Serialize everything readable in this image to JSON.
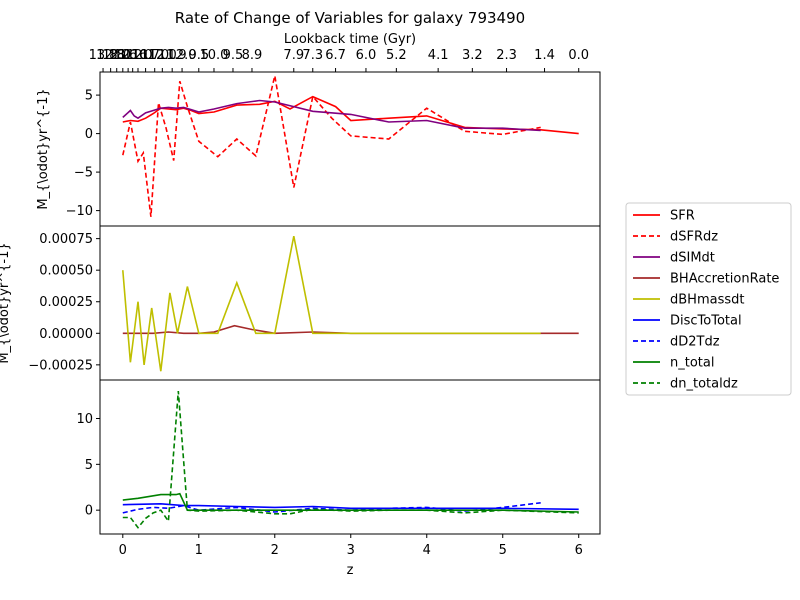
{
  "chart_data": {
    "type": "line",
    "title": "Rate of Change of Variables for galaxy 793490",
    "xlabel": "z",
    "top_xlabel": "Lookback time (Gyr)",
    "xlim": [
      -0.3,
      6.28
    ],
    "x_ticks": [
      0,
      1,
      2,
      3,
      4,
      5,
      6
    ],
    "top_ticks": [
      {
        "z": -0.26,
        "label": "13.8"
      },
      {
        "z": -0.16,
        "label": "12.8"
      },
      {
        "z": -0.08,
        "label": "12.0"
      },
      {
        "z": 0.0,
        "label": "13.6"
      },
      {
        "z": 0.07,
        "label": "12.2"
      },
      {
        "z": 0.13,
        "label": "11.6"
      },
      {
        "z": 0.2,
        "label": "11.0"
      },
      {
        "z": 0.3,
        "label": "10.7"
      },
      {
        "z": 0.42,
        "label": "11.0"
      },
      {
        "z": 0.52,
        "label": "12.0"
      },
      {
        "z": 0.65,
        "label": "11.9"
      },
      {
        "z": 0.78,
        "label": "12.0"
      },
      {
        "z": 1.0,
        "label": "9.5"
      },
      {
        "z": 1.2,
        "label": "10.0"
      },
      {
        "z": 1.45,
        "label": "9.5"
      },
      {
        "z": 1.7,
        "label": "8.9"
      },
      {
        "z": 2.25,
        "label": "7.9"
      },
      {
        "z": 2.5,
        "label": "7.3"
      },
      {
        "z": 2.8,
        "label": "6.7"
      },
      {
        "z": 3.2,
        "label": "6.0"
      },
      {
        "z": 3.6,
        "label": "5.2"
      },
      {
        "z": 4.15,
        "label": "4.1"
      },
      {
        "z": 4.6,
        "label": "3.2"
      },
      {
        "z": 5.05,
        "label": "2.3"
      },
      {
        "z": 5.55,
        "label": "1.4"
      },
      {
        "z": 6.0,
        "label": "0.0"
      }
    ],
    "legend_position": "right",
    "panels": [
      {
        "ylabel": "M_{\\odot}yr^{-1}",
        "ylim": [
          -12.0,
          8.0
        ],
        "y_ticks": [
          {
            "value": 5,
            "label": "5"
          },
          {
            "value": 0,
            "label": "0"
          },
          {
            "value": -5,
            "label": "−5"
          },
          {
            "value": -10,
            "label": "−10"
          }
        ],
        "series": [
          {
            "name": "SFR",
            "color": "#ff0000",
            "dash": "solid",
            "x": [
              0,
              0.1,
              0.2,
              0.3,
              0.4,
              0.5,
              0.6,
              0.7,
              0.8,
              0.9,
              1.0,
              1.2,
              1.5,
              1.8,
              2.0,
              2.2,
              2.5,
              2.8,
              3.0,
              3.5,
              4.0,
              4.5,
              5.0,
              5.5,
              6.0
            ],
            "y": [
              1.5,
              1.7,
              1.6,
              2.0,
              2.6,
              3.3,
              3.2,
              3.1,
              3.3,
              3.0,
              2.6,
              2.8,
              3.7,
              3.8,
              4.2,
              3.2,
              4.8,
              3.5,
              1.7,
              2.0,
              2.3,
              0.8,
              0.6,
              0.5,
              0.0
            ]
          },
          {
            "name": "dSFRdz",
            "color": "#ff0000",
            "dash": "dashed",
            "x": [
              0,
              0.1,
              0.2,
              0.27,
              0.37,
              0.47,
              0.57,
              0.67,
              0.75,
              0.85,
              1.0,
              1.25,
              1.5,
              1.75,
              2.0,
              2.25,
              2.5,
              2.75,
              3.0,
              3.5,
              4.0,
              4.5,
              5.0,
              5.5
            ],
            "y": [
              -2.8,
              1.5,
              -3.6,
              -2.5,
              -10.8,
              4.0,
              0.7,
              -3.5,
              6.8,
              3.5,
              -1.0,
              -3.0,
              -0.7,
              -2.9,
              7.5,
              -7.0,
              4.8,
              2.0,
              -0.3,
              -0.7,
              3.3,
              0.3,
              -0.1,
              0.8
            ]
          },
          {
            "name": "dSIMdt",
            "color": "#800080",
            "dash": "solid",
            "x": [
              0,
              0.1,
              0.15,
              0.2,
              0.3,
              0.4,
              0.5,
              0.6,
              0.7,
              0.8,
              0.9,
              1.0,
              1.2,
              1.5,
              1.8,
              2.0,
              2.5,
              3.0,
              3.5,
              4.0,
              4.5,
              5.0,
              5.5
            ],
            "y": [
              2.1,
              3.0,
              2.3,
              2.0,
              2.7,
              3.0,
              3.3,
              3.4,
              3.3,
              3.4,
              3.1,
              2.8,
              3.2,
              3.9,
              4.3,
              4.1,
              2.9,
              2.5,
              1.5,
              1.7,
              0.7,
              0.7,
              0.4
            ]
          }
        ]
      },
      {
        "ylabel": "M_{\\odot}yr^{-1}",
        "ylim": [
          -0.00037,
          0.00085
        ],
        "y_ticks": [
          {
            "value": 0.00075,
            "label": "0.00075"
          },
          {
            "value": 0.0005,
            "label": "0.00050"
          },
          {
            "value": 0.00025,
            "label": "0.00025"
          },
          {
            "value": 0.0,
            "label": "0.00000"
          },
          {
            "value": -0.00025,
            "label": "−0.00025"
          }
        ],
        "series": [
          {
            "name": "BHAccretionRate",
            "color": "#a52a2a",
            "dash": "solid",
            "x": [
              0,
              0.2,
              0.4,
              0.6,
              0.8,
              1.0,
              1.2,
              1.47,
              1.7,
              2.0,
              2.5,
              3.0,
              4.0,
              5.0,
              6.0
            ],
            "y": [
              0.0,
              0.0,
              0.0,
              1e-05,
              0.0,
              0.0,
              1e-05,
              6e-05,
              3e-05,
              0.0,
              1e-05,
              0.0,
              0.0,
              0.0,
              0.0
            ]
          },
          {
            "name": "dBHmassdt",
            "color": "#bfbf00",
            "dash": "solid",
            "x": [
              0,
              0.1,
              0.2,
              0.28,
              0.38,
              0.5,
              0.62,
              0.72,
              0.85,
              1.0,
              1.25,
              1.5,
              1.75,
              2.0,
              2.25,
              2.5,
              3.0,
              4.0,
              5.5
            ],
            "y": [
              0.0005,
              -0.00023,
              0.00025,
              -0.00025,
              0.0002,
              -0.0003,
              0.00032,
              0.0,
              0.00037,
              0.0,
              0.0,
              0.0004,
              0.0,
              0.0,
              0.00077,
              0.0,
              0.0,
              0.0,
              0.0
            ]
          }
        ]
      },
      {
        "ylabel": "",
        "ylim": [
          -2.6,
          14.2
        ],
        "y_ticks": [
          {
            "value": 10,
            "label": "10"
          },
          {
            "value": 5,
            "label": "5"
          },
          {
            "value": 0,
            "label": "0"
          }
        ],
        "series": [
          {
            "name": "DiscToTotal",
            "color": "#0000ff",
            "dash": "solid",
            "x": [
              0,
              0.5,
              0.8,
              1.0,
              1.5,
              2.0,
              2.5,
              3.0,
              4.0,
              5.0,
              6.0
            ],
            "y": [
              0.6,
              0.7,
              0.5,
              0.5,
              0.4,
              0.3,
              0.4,
              0.2,
              0.2,
              0.2,
              0.1
            ]
          },
          {
            "name": "dD2Tdz",
            "color": "#0000ff",
            "dash": "dashed",
            "x": [
              0,
              0.2,
              0.4,
              0.6,
              0.8,
              1.0,
              1.5,
              2.0,
              2.5,
              3.0,
              3.5,
              4.0,
              4.5,
              5.0,
              5.5
            ],
            "y": [
              -0.3,
              0.1,
              0.3,
              0.2,
              0.5,
              0.0,
              0.3,
              -0.2,
              0.2,
              0.0,
              0.2,
              0.3,
              -0.1,
              0.3,
              0.8
            ]
          },
          {
            "name": "n_total",
            "color": "#008000",
            "dash": "solid",
            "x": [
              0,
              0.2,
              0.5,
              0.7,
              0.75,
              0.85,
              1.0,
              1.5,
              2.0,
              2.5,
              3.0,
              4.0,
              5.0,
              6.0
            ],
            "y": [
              1.1,
              1.3,
              1.7,
              1.7,
              1.8,
              0.0,
              0.0,
              0.0,
              0.0,
              0.0,
              0.0,
              0.0,
              0.0,
              -0.2
            ]
          },
          {
            "name": "dn_totaldz",
            "color": "#008000",
            "dash": "dashed",
            "x": [
              0,
              0.1,
              0.2,
              0.3,
              0.4,
              0.5,
              0.6,
              0.73,
              0.85,
              1.0,
              1.5,
              2.0,
              2.2,
              2.5,
              3.0,
              3.5,
              4.0,
              4.5,
              5.0,
              6.0
            ],
            "y": [
              -0.8,
              -0.8,
              -1.9,
              -0.9,
              -0.3,
              0.0,
              -1.2,
              13.0,
              0.0,
              -0.1,
              0.0,
              -0.4,
              -0.4,
              0.1,
              -0.1,
              0.0,
              0.0,
              -0.3,
              0.0,
              -0.3
            ]
          }
        ]
      }
    ]
  }
}
